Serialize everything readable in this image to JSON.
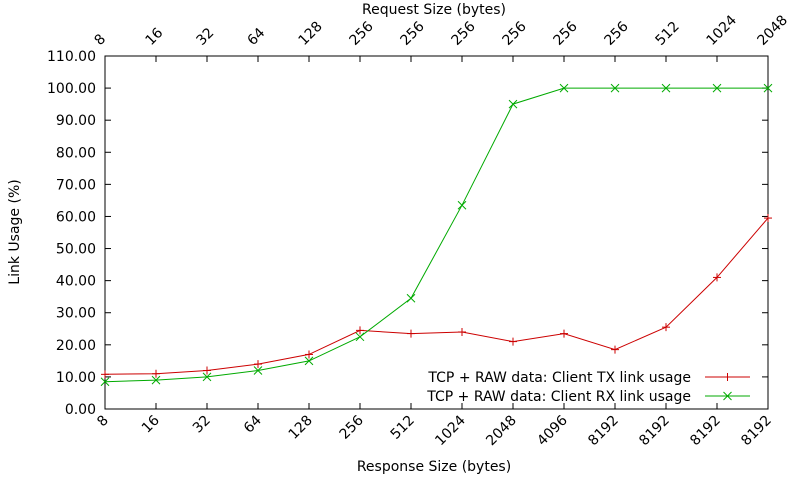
{
  "chart_data": {
    "type": "line",
    "ylabel": "Link Usage (%)",
    "xlabel": "Response Size (bytes)",
    "x2label": "Request Size (bytes)",
    "ylim": [
      0,
      110
    ],
    "yticks": [
      "0.00",
      "10.00",
      "20.00",
      "30.00",
      "40.00",
      "50.00",
      "60.00",
      "70.00",
      "80.00",
      "90.00",
      "100.00",
      "110.00"
    ],
    "x_bottom_labels": [
      "8",
      "16",
      "32",
      "64",
      "128",
      "256",
      "512",
      "1024",
      "2048",
      "4096",
      "8192",
      "8192",
      "8192",
      "8192"
    ],
    "x_top_labels": [
      "8",
      "16",
      "32",
      "64",
      "128",
      "256",
      "256",
      "256",
      "256",
      "256",
      "256",
      "512",
      "1024",
      "2048"
    ],
    "grid": false,
    "legend_position": "bottom-right",
    "series": [
      {
        "name": "TCP + RAW data: Client TX link usage",
        "color": "#cc0000",
        "marker": "plus",
        "values": [
          10.8,
          11.0,
          12.0,
          14.0,
          17.0,
          24.5,
          23.5,
          24.0,
          21.0,
          23.5,
          18.5,
          25.5,
          41.0,
          59.5
        ]
      },
      {
        "name": "TCP + RAW data: Client RX link usage",
        "color": "#00aa00",
        "marker": "cross",
        "values": [
          8.5,
          9.0,
          10.0,
          12.0,
          15.0,
          22.5,
          34.5,
          63.5,
          95.0,
          100.0,
          100.0,
          100.0,
          100.0,
          100.0
        ]
      }
    ]
  }
}
